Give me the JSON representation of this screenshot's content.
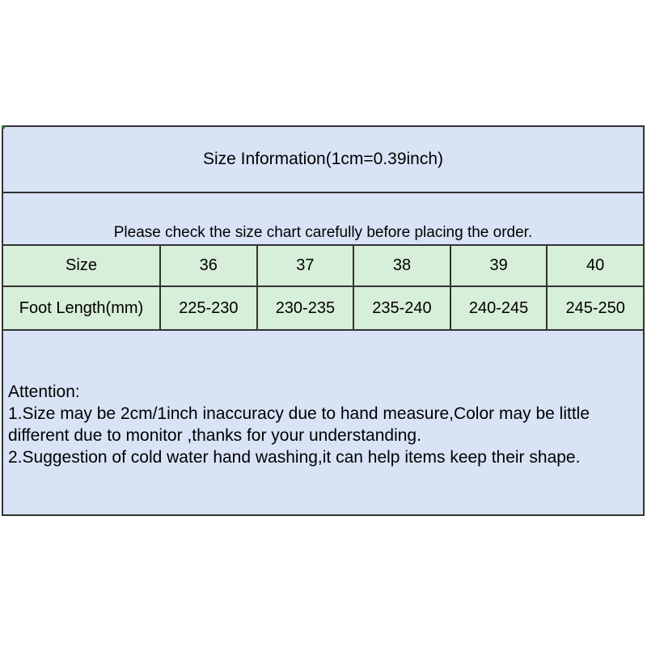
{
  "window": {
    "background": "#ffffff"
  },
  "colors": {
    "panel_blue": "#d8e3f6",
    "table_green": "#d7eed8",
    "border_dark": "#333333",
    "text": "#000000",
    "corner_artifact_green": "#2a7a2a"
  },
  "header": {
    "title": "Size Information(1cm=0.39inch)"
  },
  "notice": {
    "text": "Please check the size chart carefully before placing the order."
  },
  "size_table": {
    "size_row": {
      "label": "Size",
      "values": [
        "36",
        "37",
        "38",
        "39",
        "40"
      ]
    },
    "foot_row": {
      "label": "Foot Length(mm)",
      "values": [
        "225-230",
        "230-235",
        "235-240",
        "240-245",
        "245-250"
      ]
    }
  },
  "attention": {
    "heading": "Attention:",
    "line1": "1.Size may be 2cm/1inch inaccuracy due to hand measure,Color may be little",
    "line2": "different due to monitor ,thanks for your understanding.",
    "line3": "2.Suggestion of cold water hand washing,it can help items keep their shape."
  }
}
